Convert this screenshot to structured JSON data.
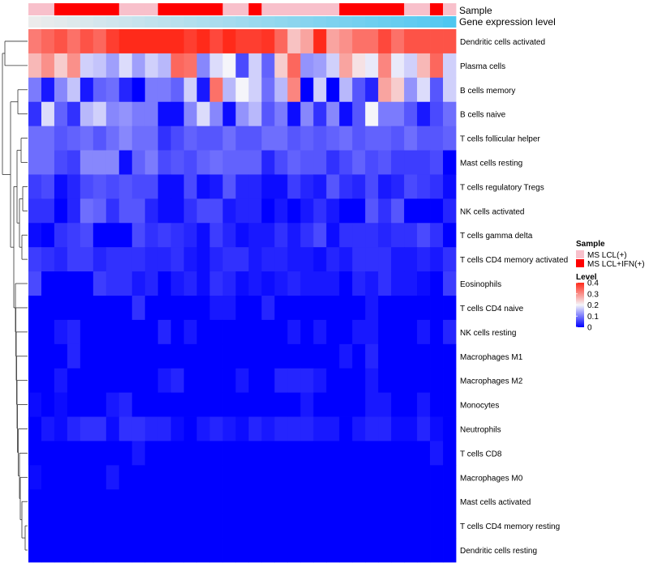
{
  "chart_data": {
    "type": "heatmap",
    "annotation_labels": {
      "sample": "Sample",
      "expression": "Gene expression level"
    },
    "rows": [
      "Dendritic cells activated",
      "Plasma cells",
      "B cells memory",
      "B cells naive",
      "T cells follicular helper",
      "Mast cells resting",
      "T cells regulatory  Tregs",
      "NK cells activated",
      "T cells gamma delta",
      "T cells CD4 memory activated",
      "Eosinophils",
      "T cells CD4 naive",
      "NK cells resting",
      "Macrophages M1",
      "Macrophages M2",
      "Monocytes",
      "Neutrophils",
      "T cells CD8",
      "Macrophages M0",
      "Mast cells activated",
      "T cells CD4 memory resting",
      "Dendritic cells resting"
    ],
    "sample_groups": [
      "MS LCL(+)",
      "MS LCL(+)",
      "MS LCL+IFN(+)",
      "MS LCL+IFN(+)",
      "MS LCL+IFN(+)",
      "MS LCL+IFN(+)",
      "MS LCL+IFN(+)",
      "MS LCL(+)",
      "MS LCL(+)",
      "MS LCL(+)",
      "MS LCL+IFN(+)",
      "MS LCL+IFN(+)",
      "MS LCL+IFN(+)",
      "MS LCL+IFN(+)",
      "MS LCL+IFN(+)",
      "MS LCL(+)",
      "MS LCL(+)",
      "MS LCL+IFN(+)",
      "MS LCL(+)",
      "MS LCL(+)",
      "MS LCL(+)",
      "MS LCL(+)",
      "MS LCL(+)",
      "MS LCL(+)",
      "MS LCL+IFN(+)",
      "MS LCL+IFN(+)",
      "MS LCL+IFN(+)",
      "MS LCL+IFN(+)",
      "MS LCL+IFN(+)",
      "MS LCL(+)",
      "MS LCL(+)",
      "MS LCL+IFN(+)",
      "MS LCL(+)"
    ],
    "expression_level": [
      0.0,
      0.03,
      0.06,
      0.09,
      0.12,
      0.15,
      0.18,
      0.21,
      0.24,
      0.27,
      0.3,
      0.33,
      0.36,
      0.39,
      0.42,
      0.45,
      0.48,
      0.52,
      0.55,
      0.58,
      0.61,
      0.64,
      0.67,
      0.7,
      0.73,
      0.76,
      0.79,
      0.82,
      0.85,
      0.88,
      0.91,
      0.94,
      1.0
    ],
    "values": [
      [
        0.32,
        0.34,
        0.36,
        0.33,
        0.36,
        0.34,
        0.38,
        0.4,
        0.4,
        0.4,
        0.4,
        0.4,
        0.38,
        0.4,
        0.37,
        0.4,
        0.38,
        0.38,
        0.39,
        0.34,
        0.25,
        0.28,
        0.4,
        0.28,
        0.3,
        0.33,
        0.33,
        0.37,
        0.33,
        0.36,
        0.36,
        0.36,
        0.36
      ],
      [
        0.26,
        0.3,
        0.24,
        0.3,
        0.17,
        0.16,
        0.13,
        0.18,
        0.13,
        0.17,
        0.15,
        0.34,
        0.33,
        0.11,
        0.18,
        0.2,
        0.06,
        0.17,
        0.08,
        0.24,
        0.34,
        0.12,
        0.13,
        0.17,
        0.28,
        0.22,
        0.19,
        0.31,
        0.19,
        0.17,
        0.26,
        0.34,
        0.17
      ],
      [
        0.1,
        0.02,
        0.11,
        0.16,
        0.02,
        0.08,
        0.09,
        0.03,
        0.0,
        0.1,
        0.1,
        0.08,
        0.17,
        0.02,
        0.33,
        0.15,
        0.2,
        0.17,
        0.09,
        0.15,
        0.31,
        0.0,
        0.17,
        0.0,
        0.15,
        0.07,
        0.03,
        0.28,
        0.24,
        0.12,
        0.18,
        0.07,
        0.17
      ],
      [
        0.04,
        0.18,
        0.08,
        0.04,
        0.15,
        0.17,
        0.11,
        0.12,
        0.1,
        0.1,
        0.01,
        0.01,
        0.11,
        0.18,
        0.11,
        0.01,
        0.12,
        0.15,
        0.07,
        0.1,
        0.01,
        0.11,
        0.04,
        0.11,
        0.01,
        0.07,
        0.2,
        0.1,
        0.1,
        0.07,
        0.02,
        0.06,
        0.09
      ],
      [
        0.09,
        0.09,
        0.07,
        0.08,
        0.09,
        0.07,
        0.09,
        0.11,
        0.09,
        0.09,
        0.04,
        0.06,
        0.08,
        0.07,
        0.07,
        0.09,
        0.07,
        0.07,
        0.09,
        0.09,
        0.07,
        0.08,
        0.07,
        0.08,
        0.09,
        0.07,
        0.08,
        0.08,
        0.07,
        0.09,
        0.07,
        0.07,
        0.08
      ],
      [
        0.09,
        0.09,
        0.06,
        0.05,
        0.11,
        0.11,
        0.11,
        0.01,
        0.08,
        0.1,
        0.06,
        0.07,
        0.06,
        0.08,
        0.09,
        0.08,
        0.08,
        0.08,
        0.03,
        0.06,
        0.08,
        0.07,
        0.07,
        0.04,
        0.06,
        0.08,
        0.06,
        0.07,
        0.05,
        0.05,
        0.05,
        0.06,
        0.0
      ],
      [
        0.05,
        0.06,
        0.01,
        0.03,
        0.06,
        0.07,
        0.06,
        0.07,
        0.06,
        0.06,
        0.01,
        0.01,
        0.06,
        0.01,
        0.02,
        0.07,
        0.03,
        0.03,
        0.01,
        0.01,
        0.05,
        0.03,
        0.02,
        0.07,
        0.04,
        0.03,
        0.06,
        0.02,
        0.03,
        0.06,
        0.05,
        0.04,
        0.01
      ],
      [
        0.04,
        0.04,
        0.0,
        0.03,
        0.09,
        0.08,
        0.04,
        0.07,
        0.07,
        0.03,
        0.01,
        0.01,
        0.04,
        0.06,
        0.06,
        0.02,
        0.03,
        0.03,
        0.0,
        0.02,
        0.0,
        0.02,
        0.04,
        0.02,
        0.0,
        0.0,
        0.07,
        0.04,
        0.07,
        0.0,
        0.0,
        0.0,
        0.03
      ],
      [
        0.01,
        0.0,
        0.04,
        0.05,
        0.06,
        0.0,
        0.0,
        0.0,
        0.06,
        0.04,
        0.05,
        0.04,
        0.03,
        0.01,
        0.05,
        0.03,
        0.01,
        0.02,
        0.02,
        0.04,
        0.02,
        0.04,
        0.06,
        0.01,
        0.04,
        0.04,
        0.04,
        0.03,
        0.04,
        0.04,
        0.06,
        0.04,
        0.0
      ],
      [
        0.05,
        0.04,
        0.03,
        0.05,
        0.05,
        0.03,
        0.04,
        0.04,
        0.04,
        0.03,
        0.03,
        0.04,
        0.02,
        0.01,
        0.03,
        0.04,
        0.04,
        0.02,
        0.03,
        0.03,
        0.02,
        0.02,
        0.01,
        0.03,
        0.02,
        0.04,
        0.04,
        0.04,
        0.02,
        0.02,
        0.03,
        0.02,
        0.04
      ],
      [
        0.06,
        0.0,
        0.0,
        0.0,
        0.0,
        0.05,
        0.04,
        0.04,
        0.02,
        0.03,
        0.0,
        0.02,
        0.03,
        0.01,
        0.04,
        0.03,
        0.01,
        0.02,
        0.01,
        0.02,
        0.03,
        0.02,
        0.02,
        0.02,
        0.0,
        0.03,
        0.02,
        0.04,
        0.02,
        0.02,
        0.01,
        0.0,
        0.05
      ],
      [
        0.0,
        0.0,
        0.0,
        0.0,
        0.0,
        0.0,
        0.0,
        0.0,
        0.04,
        0.0,
        0.0,
        0.0,
        0.0,
        0.0,
        0.02,
        0.02,
        0.0,
        0.0,
        0.03,
        0.0,
        0.0,
        0.0,
        0.0,
        0.0,
        0.0,
        0.0,
        0.02,
        0.0,
        0.0,
        0.0,
        0.0,
        0.0,
        0.0
      ],
      [
        0.0,
        0.0,
        0.02,
        0.03,
        0.0,
        0.0,
        0.0,
        0.0,
        0.0,
        0.0,
        0.03,
        0.0,
        0.02,
        0.0,
        0.0,
        0.0,
        0.0,
        0.0,
        0.0,
        0.0,
        0.02,
        0.0,
        0.02,
        0.0,
        0.0,
        0.02,
        0.02,
        0.0,
        0.0,
        0.0,
        0.02,
        0.0,
        0.03
      ],
      [
        0.0,
        0.0,
        0.0,
        0.03,
        0.0,
        0.0,
        0.0,
        0.0,
        0.0,
        0.0,
        0.0,
        0.0,
        0.0,
        0.0,
        0.0,
        0.0,
        0.0,
        0.0,
        0.0,
        0.0,
        0.0,
        0.0,
        0.0,
        0.0,
        0.02,
        0.0,
        0.03,
        0.0,
        0.0,
        0.0,
        0.0,
        0.0,
        0.0
      ],
      [
        0.0,
        0.0,
        0.02,
        0.0,
        0.0,
        0.0,
        0.0,
        0.0,
        0.0,
        0.0,
        0.02,
        0.03,
        0.0,
        0.0,
        0.0,
        0.0,
        0.02,
        0.0,
        0.0,
        0.03,
        0.03,
        0.03,
        0.02,
        0.0,
        0.0,
        0.0,
        0.02,
        0.0,
        0.0,
        0.0,
        0.0,
        0.0,
        0.0
      ],
      [
        0.01,
        0.0,
        0.01,
        0.0,
        0.0,
        0.0,
        0.02,
        0.03,
        0.0,
        0.0,
        0.0,
        0.0,
        0.0,
        0.0,
        0.0,
        0.0,
        0.0,
        0.0,
        0.0,
        0.0,
        0.0,
        0.02,
        0.0,
        0.0,
        0.0,
        0.0,
        0.02,
        0.02,
        0.0,
        0.0,
        0.02,
        0.0,
        0.0
      ],
      [
        0.0,
        0.02,
        0.01,
        0.03,
        0.04,
        0.04,
        0.01,
        0.04,
        0.04,
        0.03,
        0.03,
        0.01,
        0.0,
        0.02,
        0.03,
        0.02,
        0.01,
        0.03,
        0.02,
        0.03,
        0.03,
        0.03,
        0.02,
        0.02,
        0.0,
        0.02,
        0.03,
        0.03,
        0.01,
        0.01,
        0.03,
        0.01,
        0.0
      ],
      [
        0.0,
        0.0,
        0.0,
        0.0,
        0.0,
        0.0,
        0.0,
        0.0,
        0.02,
        0.0,
        0.0,
        0.0,
        0.0,
        0.0,
        0.0,
        0.0,
        0.0,
        0.0,
        0.0,
        0.0,
        0.0,
        0.0,
        0.0,
        0.0,
        0.0,
        0.0,
        0.0,
        0.0,
        0.0,
        0.0,
        0.0,
        0.02,
        0.0
      ],
      [
        0.01,
        0.0,
        0.0,
        0.0,
        0.0,
        0.0,
        0.02,
        0.0,
        0.0,
        0.0,
        0.0,
        0.0,
        0.0,
        0.0,
        0.0,
        0.0,
        0.0,
        0.0,
        0.0,
        0.0,
        0.0,
        0.0,
        0.0,
        0.0,
        0.0,
        0.0,
        0.0,
        0.0,
        0.0,
        0.0,
        0.0,
        0.0,
        0.0
      ],
      [
        0.0,
        0.0,
        0.0,
        0.0,
        0.0,
        0.0,
        0.0,
        0.0,
        0.0,
        0.0,
        0.0,
        0.0,
        0.0,
        0.0,
        0.0,
        0.0,
        0.0,
        0.0,
        0.0,
        0.0,
        0.0,
        0.0,
        0.0,
        0.0,
        0.0,
        0.0,
        0.0,
        0.0,
        0.0,
        0.0,
        0.0,
        0.0,
        0.0
      ],
      [
        0.0,
        0.0,
        0.0,
        0.0,
        0.0,
        0.0,
        0.0,
        0.0,
        0.0,
        0.0,
        0.0,
        0.0,
        0.0,
        0.0,
        0.0,
        0.0,
        0.0,
        0.0,
        0.0,
        0.0,
        0.0,
        0.0,
        0.0,
        0.0,
        0.0,
        0.0,
        0.0,
        0.0,
        0.0,
        0.0,
        0.0,
        0.0,
        0.0
      ],
      [
        0.0,
        0.0,
        0.0,
        0.0,
        0.0,
        0.0,
        0.0,
        0.0,
        0.0,
        0.0,
        0.0,
        0.0,
        0.0,
        0.0,
        0.0,
        0.0,
        0.0,
        0.0,
        0.0,
        0.0,
        0.0,
        0.0,
        0.0,
        0.0,
        0.0,
        0.0,
        0.0,
        0.0,
        0.0,
        0.0,
        0.0,
        0.0,
        0.0
      ]
    ],
    "color_scale": {
      "low": "#0000ff",
      "mid": "#f5f5fa",
      "high": "#ff2a1a",
      "midpoint": 0.2,
      "range": [
        0,
        0.4
      ]
    },
    "legend": {
      "position": "right",
      "sample_title": "Sample",
      "sample_entries": [
        {
          "label": "MS LCL(+)",
          "color": "#f8c0cb"
        },
        {
          "label": "MS LCL+IFN(+)",
          "color": "#ff0000"
        }
      ],
      "level_title": "Level",
      "level_ticks": [
        {
          "label": "0.4",
          "value": 0.4
        },
        {
          "label": "0.3",
          "value": 0.3
        },
        {
          "label": "0.2",
          "value": 0.2
        },
        {
          "label": "0.1",
          "value": 0.1
        },
        {
          "label": "0",
          "value": 0.0
        }
      ]
    },
    "sample_colors": {
      "MS LCL(+)": "#f8c0cb",
      "MS LCL+IFN(+)": "#ff0000"
    },
    "expression_colors": [
      "#ececec",
      "#4ec7f0"
    ]
  }
}
